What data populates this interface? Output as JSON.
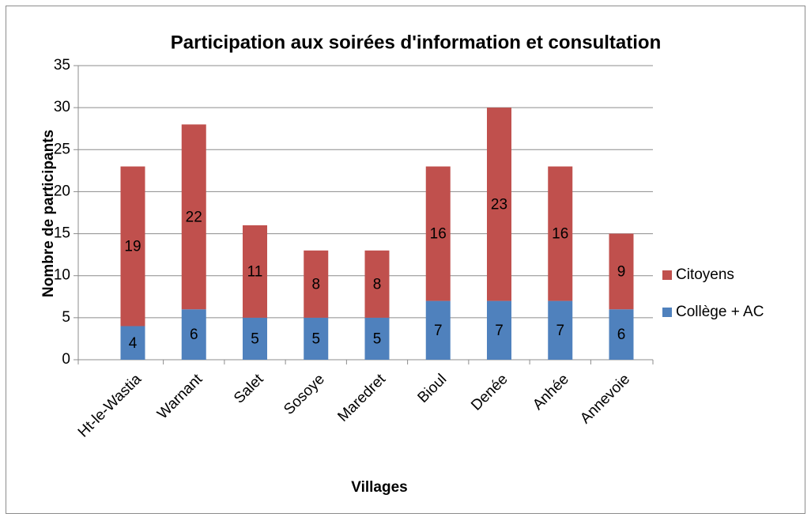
{
  "chart_data": {
    "type": "stacked_bar",
    "title": "Participation aux soirées d'information et consultation",
    "x_label": "Villages",
    "y_label": "Nombre de participants",
    "categories": [
      "Ht-le-Wastia",
      "Warnant",
      "Salet",
      "Sosoye",
      "Maredret",
      "Bioul",
      "Denée",
      "Anhée",
      "Annevoie"
    ],
    "series": [
      {
        "name": "Collège + AC",
        "color": "#4f81bd",
        "values": [
          4,
          6,
          5,
          5,
          5,
          7,
          7,
          7,
          6
        ]
      },
      {
        "name": "Citoyens",
        "color": "#c0504d",
        "values": [
          19,
          22,
          11,
          8,
          8,
          16,
          23,
          16,
          9
        ]
      }
    ],
    "ylim": [
      0,
      35
    ],
    "yticks": [
      0,
      5,
      10,
      15,
      20,
      25,
      30,
      35
    ],
    "grid": true,
    "legend": "right"
  }
}
